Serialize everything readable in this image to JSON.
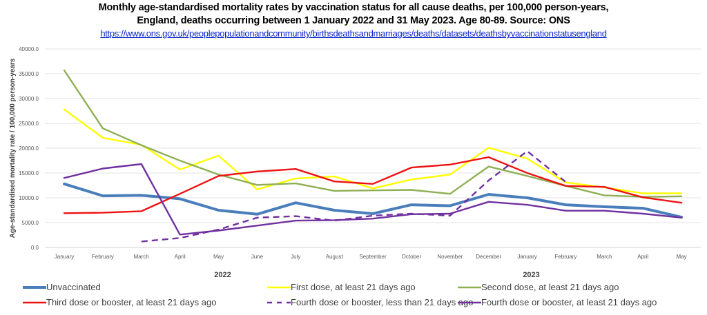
{
  "chart_data": {
    "type": "line",
    "title_line1": "Monthly age-standardised mortality rates by vaccination status for all cause deaths, per 100,000 person-years,",
    "title_line2": "England, deaths occurring between 1 January 2022 and 31 May  2023. Age 80-89. Source: ONS",
    "source_link": "https://www.ons.gov.uk/peoplepopulationandcommunity/birthsdeathsandmarriages/deaths/datasets/deathsbyvaccinationstatusengland",
    "ylabel": "Age-standardised mortality rate / 100,000 person-years",
    "xlabel": "",
    "ylim": [
      0,
      40000
    ],
    "yticks": [
      "0.0",
      "5000.0",
      "10000.0",
      "15000.0",
      "20000.0",
      "25000.0",
      "30000.0",
      "35000.0",
      "40000.0"
    ],
    "ytick_values": [
      0,
      5000,
      10000,
      15000,
      20000,
      25000,
      30000,
      35000,
      40000
    ],
    "categories": [
      "January",
      "February",
      "March",
      "April",
      "May",
      "June",
      "July",
      "August",
      "September",
      "October",
      "November",
      "December",
      "January",
      "February",
      "March",
      "April",
      "May"
    ],
    "year_labels": [
      {
        "label": "2022",
        "center_index": 4
      },
      {
        "label": "2023",
        "center_index": 12
      }
    ],
    "grid": true,
    "legend_position": "bottom",
    "series": [
      {
        "name": "Unvaccinated",
        "color": "#4a7ebb",
        "dash": false,
        "width": "thick",
        "values": [
          12800,
          10400,
          10500,
          9800,
          7500,
          6700,
          9000,
          7500,
          6800,
          8600,
          8400,
          10700,
          10000,
          8600,
          8200,
          7900,
          6100
        ]
      },
      {
        "name": "First dose, at least 21 days ago",
        "color": "#ffff00",
        "dash": false,
        "width": "normal",
        "values": [
          27800,
          22100,
          20700,
          15700,
          18500,
          11700,
          13900,
          14300,
          11900,
          13700,
          14700,
          20100,
          17900,
          13100,
          12100,
          10900,
          10900
        ]
      },
      {
        "name": "Second dose, at least 21 days ago",
        "color": "#8faf53",
        "dash": false,
        "width": "normal",
        "values": [
          35700,
          24000,
          20600,
          17500,
          14700,
          12600,
          12900,
          11400,
          11500,
          11600,
          10800,
          16300,
          14400,
          12400,
          10500,
          10200,
          10300
        ]
      },
      {
        "name": "Third dose or booster, at least 21 days ago",
        "color": "#ee1111",
        "dash": false,
        "width": "normal",
        "values": [
          6900,
          7000,
          7300,
          10800,
          14400,
          15300,
          15800,
          13300,
          12800,
          16100,
          16700,
          18200,
          15000,
          12400,
          12200,
          10100,
          9000
        ]
      },
      {
        "name": "Fourth dose or booster, less than 21 days ago",
        "color": "#7030a0",
        "dash": true,
        "width": "normal",
        "values": [
          null,
          null,
          1200,
          1900,
          3600,
          6000,
          6300,
          5400,
          6400,
          6800,
          6400,
          13500,
          19400,
          13200,
          null,
          null,
          null
        ]
      },
      {
        "name": "Fourth dose or booster, at least 21 days ago",
        "color": "#7030a0",
        "dash": false,
        "width": "normal",
        "values": [
          14000,
          15900,
          16800,
          2600,
          3400,
          4400,
          5400,
          5500,
          5800,
          6700,
          6800,
          9200,
          8600,
          7400,
          7400,
          6800,
          6000
        ]
      }
    ]
  }
}
